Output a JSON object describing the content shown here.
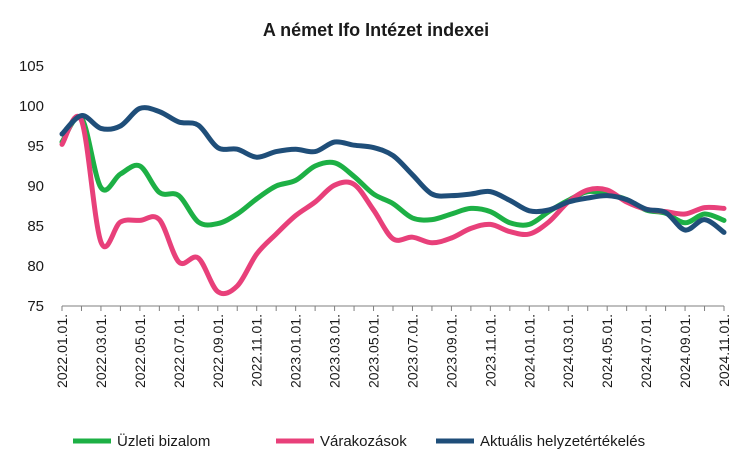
{
  "chart_data": {
    "type": "line",
    "title": "A német Ifo Intézet indexei",
    "xlabel": "",
    "ylabel": "",
    "ylim": [
      75,
      105
    ],
    "yticks": [
      75,
      80,
      85,
      90,
      95,
      100,
      105
    ],
    "grid": false,
    "legend_position": "bottom",
    "x": [
      "2022.01.01.",
      "2022.02.01.",
      "2022.03.01.",
      "2022.04.01.",
      "2022.05.01.",
      "2022.06.01.",
      "2022.07.01.",
      "2022.08.01.",
      "2022.09.01.",
      "2022.10.01.",
      "2022.11.01.",
      "2022.12.01.",
      "2023.01.01.",
      "2023.02.01.",
      "2023.03.01.",
      "2023.04.01.",
      "2023.05.01.",
      "2023.06.01.",
      "2023.07.01.",
      "2023.08.01.",
      "2023.09.01.",
      "2023.10.01.",
      "2023.11.01.",
      "2023.12.01.",
      "2024.01.01.",
      "2024.02.01.",
      "2024.03.01.",
      "2024.04.01.",
      "2024.05.01.",
      "2024.06.01.",
      "2024.07.01.",
      "2024.08.01.",
      "2024.09.01.",
      "2024.10.01.",
      "2024.11.01."
    ],
    "x_tick_labels": [
      "2022.01.01.",
      "2022.03.01.",
      "2022.05.01.",
      "2022.07.01.",
      "2022.09.01.",
      "2022.11.01.",
      "2023.01.01.",
      "2023.03.01.",
      "2023.05.01.",
      "2023.07.01.",
      "2023.09.01.",
      "2023.11.01.",
      "2024.01.01.",
      "2024.03.01.",
      "2024.05.01.",
      "2024.07.01.",
      "2024.09.01.",
      "2024.11.01."
    ],
    "series": [
      {
        "name": "Üzleti bizalom",
        "color": "#1db045",
        "values": [
          95.5,
          98.5,
          89.8,
          91.5,
          92.5,
          89.2,
          88.8,
          85.5,
          85.3,
          86.5,
          88.4,
          90.0,
          90.7,
          92.5,
          92.9,
          91.2,
          89.0,
          87.8,
          86.0,
          85.8,
          86.5,
          87.2,
          86.8,
          85.4,
          85.2,
          86.8,
          88.2,
          89.3,
          89.0,
          88.3,
          87.0,
          86.6,
          85.4,
          86.5,
          85.7
        ]
      },
      {
        "name": "Várakozások",
        "color": "#e8407a",
        "values": [
          95.2,
          98.2,
          83.0,
          85.5,
          85.7,
          85.8,
          80.5,
          81.0,
          76.8,
          77.5,
          81.5,
          84.0,
          86.3,
          88.0,
          90.1,
          90.2,
          87.0,
          83.4,
          83.6,
          82.9,
          83.5,
          84.7,
          85.2,
          84.3,
          84.0,
          85.5,
          88.0,
          89.5,
          89.5,
          88.0,
          87.1,
          86.8,
          86.5,
          87.3,
          87.2
        ]
      },
      {
        "name": "Aktuális helyzetértékelés",
        "color": "#1f4e79",
        "values": [
          96.5,
          98.8,
          97.2,
          97.5,
          99.7,
          99.3,
          98.0,
          97.6,
          94.8,
          94.6,
          93.6,
          94.3,
          94.6,
          94.3,
          95.5,
          95.1,
          94.8,
          93.8,
          91.4,
          89.0,
          88.8,
          89.0,
          89.3,
          88.2,
          86.9,
          87.0,
          88.0,
          88.5,
          88.8,
          88.3,
          87.1,
          86.7,
          84.5,
          85.8,
          84.2
        ]
      }
    ]
  }
}
